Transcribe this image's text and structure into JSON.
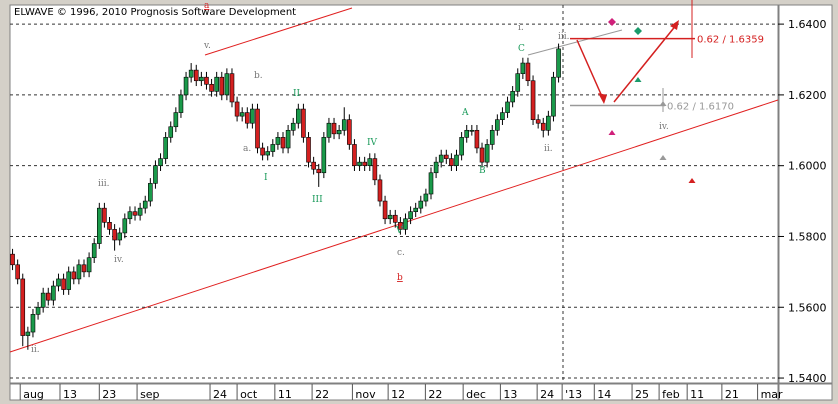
{
  "chart_data": {
    "type": "candlestick",
    "title": "ELWAVE © 1996, 2010 Prognosis Software Development",
    "up_color": "#1a9a4a",
    "down_color": "#d42020",
    "grid": true,
    "ylim": [
      1.5386,
      1.6454
    ],
    "yticks": [
      {
        "value": 1.64,
        "label": "1.6400"
      },
      {
        "value": 1.62,
        "label": "1.6200"
      },
      {
        "value": 1.6,
        "label": "1.6000"
      },
      {
        "value": 1.58,
        "label": "1.5800"
      },
      {
        "value": 1.56,
        "label": "1.5600"
      },
      {
        "value": 1.54,
        "label": "1.5400"
      }
    ],
    "xlim": [
      -0.5,
      150
    ],
    "xticks": [
      {
        "value": 1.5,
        "label": "aug"
      },
      {
        "value": 9.3,
        "label": "13"
      },
      {
        "value": 17,
        "label": "23"
      },
      {
        "value": 24.4,
        "label": "sep"
      },
      {
        "value": 38.7,
        "label": "24"
      },
      {
        "value": 44,
        "label": "oct"
      },
      {
        "value": 51.4,
        "label": "11"
      },
      {
        "value": 58.7,
        "label": "22"
      },
      {
        "value": 66.6,
        "label": "nov"
      },
      {
        "value": 73.6,
        "label": "12"
      },
      {
        "value": 80.9,
        "label": "22"
      },
      {
        "value": 88.3,
        "label": "dec"
      },
      {
        "value": 95.6,
        "label": "13"
      },
      {
        "value": 102.8,
        "label": "24"
      },
      {
        "value": 107.7,
        "label": "'13"
      },
      {
        "value": 114,
        "label": "14"
      },
      {
        "value": 121.4,
        "label": "25"
      },
      {
        "value": 126.7,
        "label": "feb"
      },
      {
        "value": 132.2,
        "label": "11"
      },
      {
        "value": 139,
        "label": "21"
      },
      {
        "value": 146,
        "label": "mar"
      }
    ],
    "ohlc": [
      [
        1.575,
        1.5765,
        1.5705,
        1.572
      ],
      [
        1.572,
        1.5735,
        1.5665,
        1.568
      ],
      [
        1.568,
        1.5695,
        1.549,
        1.552
      ],
      [
        1.552,
        1.5545,
        1.548,
        1.553
      ],
      [
        1.553,
        1.5595,
        1.5515,
        1.558
      ],
      [
        1.558,
        1.5615,
        1.5565,
        1.56
      ],
      [
        1.56,
        1.5655,
        1.5585,
        1.564
      ],
      [
        1.564,
        1.5655,
        1.5605,
        1.562
      ],
      [
        1.562,
        1.5675,
        1.5605,
        1.566
      ],
      [
        1.566,
        1.5695,
        1.5645,
        1.568
      ],
      [
        1.568,
        1.5695,
        1.5635,
        1.565
      ],
      [
        1.565,
        1.5715,
        1.5635,
        1.57
      ],
      [
        1.57,
        1.5715,
        1.5665,
        1.568
      ],
      [
        1.568,
        1.5735,
        1.5665,
        1.572
      ],
      [
        1.572,
        1.5735,
        1.5685,
        1.57
      ],
      [
        1.57,
        1.5755,
        1.5685,
        1.574
      ],
      [
        1.574,
        1.5795,
        1.5725,
        1.578
      ],
      [
        1.578,
        1.5895,
        1.5765,
        1.588
      ],
      [
        1.588,
        1.5895,
        1.5825,
        1.584
      ],
      [
        1.584,
        1.5855,
        1.5805,
        1.582
      ],
      [
        1.582,
        1.5835,
        1.576,
        1.579
      ],
      [
        1.579,
        1.5825,
        1.5775,
        1.581
      ],
      [
        1.581,
        1.5865,
        1.5795,
        1.585
      ],
      [
        1.585,
        1.5885,
        1.5835,
        1.587
      ],
      [
        1.587,
        1.5885,
        1.5845,
        1.586
      ],
      [
        1.586,
        1.5895,
        1.5845,
        1.588
      ],
      [
        1.588,
        1.5915,
        1.5865,
        1.59
      ],
      [
        1.59,
        1.5965,
        1.5885,
        1.595
      ],
      [
        1.595,
        1.6015,
        1.5935,
        1.6
      ],
      [
        1.6,
        1.6035,
        1.5985,
        1.602
      ],
      [
        1.602,
        1.6095,
        1.6005,
        1.608
      ],
      [
        1.608,
        1.6125,
        1.6065,
        1.611
      ],
      [
        1.611,
        1.6165,
        1.6095,
        1.615
      ],
      [
        1.615,
        1.6215,
        1.6135,
        1.62
      ],
      [
        1.62,
        1.6265,
        1.6185,
        1.625
      ],
      [
        1.625,
        1.629,
        1.6235,
        1.627
      ],
      [
        1.627,
        1.6285,
        1.6225,
        1.624
      ],
      [
        1.624,
        1.6265,
        1.6225,
        1.625
      ],
      [
        1.625,
        1.6265,
        1.6215,
        1.623
      ],
      [
        1.623,
        1.6245,
        1.6195,
        1.621
      ],
      [
        1.621,
        1.6265,
        1.6195,
        1.625
      ],
      [
        1.625,
        1.6265,
        1.6185,
        1.62
      ],
      [
        1.62,
        1.6275,
        1.6185,
        1.626
      ],
      [
        1.626,
        1.6275,
        1.6165,
        1.618
      ],
      [
        1.618,
        1.6195,
        1.6125,
        1.614
      ],
      [
        1.614,
        1.6165,
        1.6125,
        1.615
      ],
      [
        1.615,
        1.6165,
        1.6105,
        1.612
      ],
      [
        1.612,
        1.6175,
        1.6105,
        1.616
      ],
      [
        1.616,
        1.6175,
        1.6035,
        1.605
      ],
      [
        1.605,
        1.6065,
        1.6015,
        1.603
      ],
      [
        1.603,
        1.6055,
        1.6015,
        1.604
      ],
      [
        1.604,
        1.6075,
        1.6025,
        1.606
      ],
      [
        1.606,
        1.6095,
        1.6045,
        1.608
      ],
      [
        1.608,
        1.6095,
        1.6035,
        1.605
      ],
      [
        1.605,
        1.6115,
        1.6035,
        1.61
      ],
      [
        1.61,
        1.6135,
        1.6085,
        1.612
      ],
      [
        1.612,
        1.6175,
        1.6105,
        1.616
      ],
      [
        1.616,
        1.6175,
        1.6065,
        1.608
      ],
      [
        1.608,
        1.6095,
        1.5995,
        1.601
      ],
      [
        1.601,
        1.6025,
        1.5975,
        1.599
      ],
      [
        1.599,
        1.6005,
        1.594,
        1.598
      ],
      [
        1.598,
        1.6095,
        1.5965,
        1.608
      ],
      [
        1.608,
        1.6135,
        1.6065,
        1.612
      ],
      [
        1.612,
        1.6135,
        1.6075,
        1.609
      ],
      [
        1.609,
        1.6115,
        1.6075,
        1.61
      ],
      [
        1.61,
        1.6165,
        1.6085,
        1.613
      ],
      [
        1.613,
        1.6145,
        1.6045,
        1.606
      ],
      [
        1.606,
        1.6075,
        1.5985,
        1.6
      ],
      [
        1.6,
        1.6025,
        1.5985,
        1.601
      ],
      [
        1.601,
        1.6025,
        1.5985,
        1.6
      ],
      [
        1.6,
        1.6035,
        1.5985,
        1.602
      ],
      [
        1.602,
        1.6035,
        1.5945,
        1.596
      ],
      [
        1.596,
        1.5975,
        1.5885,
        1.59
      ],
      [
        1.59,
        1.5915,
        1.5835,
        1.585
      ],
      [
        1.585,
        1.5875,
        1.5835,
        1.586
      ],
      [
        1.586,
        1.5875,
        1.5825,
        1.584
      ],
      [
        1.584,
        1.5855,
        1.5805,
        1.582
      ],
      [
        1.582,
        1.5865,
        1.5805,
        1.585
      ],
      [
        1.585,
        1.5885,
        1.5835,
        1.587
      ],
      [
        1.587,
        1.5895,
        1.5855,
        1.588
      ],
      [
        1.588,
        1.5915,
        1.5865,
        1.59
      ],
      [
        1.59,
        1.5935,
        1.5885,
        1.592
      ],
      [
        1.592,
        1.5995,
        1.5905,
        1.598
      ],
      [
        1.598,
        1.6025,
        1.5965,
        1.601
      ],
      [
        1.601,
        1.6045,
        1.5995,
        1.603
      ],
      [
        1.603,
        1.6045,
        1.6005,
        1.602
      ],
      [
        1.602,
        1.6035,
        1.5985,
        1.6
      ],
      [
        1.6,
        1.6045,
        1.5985,
        1.603
      ],
      [
        1.603,
        1.6095,
        1.6015,
        1.608
      ],
      [
        1.608,
        1.6115,
        1.6065,
        1.61
      ],
      [
        1.61,
        1.6115,
        1.6085,
        1.61
      ],
      [
        1.61,
        1.6115,
        1.6035,
        1.605
      ],
      [
        1.605,
        1.6065,
        1.5995,
        1.601
      ],
      [
        1.601,
        1.6075,
        1.5995,
        1.606
      ],
      [
        1.606,
        1.6115,
        1.6045,
        1.61
      ],
      [
        1.61,
        1.6145,
        1.6085,
        1.613
      ],
      [
        1.613,
        1.6165,
        1.6115,
        1.615
      ],
      [
        1.615,
        1.6195,
        1.6135,
        1.618
      ],
      [
        1.618,
        1.6225,
        1.6165,
        1.621
      ],
      [
        1.621,
        1.6275,
        1.6195,
        1.626
      ],
      [
        1.626,
        1.6305,
        1.6245,
        1.629
      ],
      [
        1.629,
        1.6305,
        1.6225,
        1.624
      ],
      [
        1.624,
        1.6255,
        1.6115,
        1.613
      ],
      [
        1.613,
        1.6145,
        1.6105,
        1.612
      ],
      [
        1.612,
        1.6135,
        1.608,
        1.61
      ],
      [
        1.61,
        1.6155,
        1.6085,
        1.614
      ],
      [
        1.614,
        1.6265,
        1.6125,
        1.625
      ],
      [
        1.625,
        1.6345,
        1.6235,
        1.633
      ]
    ],
    "projections": [
      {
        "label": "0.62 / 1.6359",
        "value": 1.6359,
        "color": "#d42020"
      },
      {
        "label": "0.62 / 1.6170",
        "value": 1.617,
        "color": "#999999"
      }
    ],
    "wave_labels": [
      {
        "text": "ii.",
        "color": "#777777"
      },
      {
        "text": "iii.",
        "color": "#777777"
      },
      {
        "text": "iv.",
        "color": "#777777"
      },
      {
        "text": "v.",
        "color": "#777777"
      },
      {
        "text": "a",
        "color": "#d42020"
      },
      {
        "text": "b.",
        "color": "#777777"
      },
      {
        "text": "a.",
        "color": "#777777"
      },
      {
        "text": "I",
        "color": "#1a9a5a"
      },
      {
        "text": "II",
        "color": "#1a9a5a"
      },
      {
        "text": "III",
        "color": "#1a9a5a"
      },
      {
        "text": "IV",
        "color": "#1a9a5a"
      },
      {
        "text": "V",
        "color": "#1a9a5a"
      },
      {
        "text": "c.",
        "color": "#777777"
      },
      {
        "text": "b",
        "color": "#d42020"
      },
      {
        "text": "A",
        "color": "#1a9a5a"
      },
      {
        "text": "B",
        "color": "#1a9a5a"
      },
      {
        "text": "C",
        "color": "#1a9a5a"
      },
      {
        "text": "i.",
        "color": "#777777"
      },
      {
        "text": "iii.",
        "color": "#777777"
      },
      {
        "text": "ii.",
        "color": "#777777"
      },
      {
        "text": "iv.",
        "color": "#777777"
      }
    ]
  }
}
